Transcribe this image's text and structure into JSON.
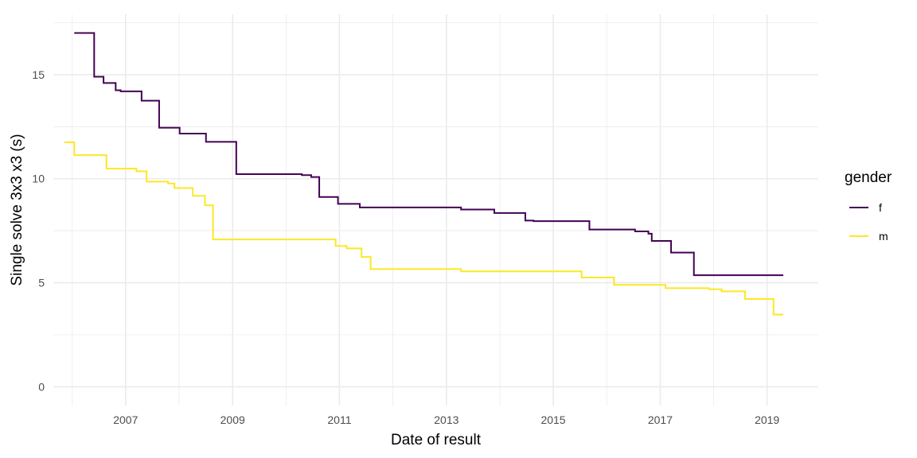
{
  "chart_data": {
    "type": "line",
    "step": true,
    "xlabel": "Date of result",
    "ylabel": "Single solve 3x3 x3 (s)",
    "x_is_date": true,
    "xlim": [
      "2005-08-25",
      "2019-12-17"
    ],
    "ylim": [
      -0.9,
      17.9
    ],
    "x_ticks": [
      "2007",
      "2009",
      "2011",
      "2013",
      "2015",
      "2017",
      "2019"
    ],
    "y_ticks": [
      0,
      5,
      10,
      15
    ],
    "grid": true,
    "legend": {
      "title": "gender",
      "position": "right"
    },
    "series": [
      {
        "name": "f",
        "color": "#440154",
        "points": [
          [
            "2006-01-15",
            17.0
          ],
          [
            "2006-05-31",
            14.9
          ],
          [
            "2006-08-03",
            14.6
          ],
          [
            "2006-10-25",
            14.25
          ],
          [
            "2006-11-28",
            14.2
          ],
          [
            "2007-04-20",
            13.75
          ],
          [
            "2007-08-18",
            12.45
          ],
          [
            "2008-01-05",
            12.17
          ],
          [
            "2008-07-03",
            11.77
          ],
          [
            "2009-01-26",
            10.22
          ],
          [
            "2010-04-19",
            10.17
          ],
          [
            "2010-06-22",
            10.08
          ],
          [
            "2010-08-16",
            9.12
          ],
          [
            "2010-12-22",
            8.79
          ],
          [
            "2011-05-20",
            8.62
          ],
          [
            "2013-04-11",
            8.52
          ],
          [
            "2013-11-24",
            8.35
          ],
          [
            "2014-06-24",
            7.99
          ],
          [
            "2014-08-19",
            7.96
          ],
          [
            "2015-09-05",
            7.56
          ],
          [
            "2016-07-13",
            7.47
          ],
          [
            "2016-10-12",
            7.36
          ],
          [
            "2016-11-04",
            7.01
          ],
          [
            "2017-03-16",
            6.45
          ],
          [
            "2017-08-19",
            5.36
          ],
          [
            "2019-04-22",
            5.36
          ]
        ]
      },
      {
        "name": "m",
        "color": "#fde725",
        "points": [
          [
            "2005-11-09",
            11.75
          ],
          [
            "2006-01-15",
            11.13
          ],
          [
            "2006-08-23",
            10.48
          ],
          [
            "2007-03-16",
            10.36
          ],
          [
            "2007-05-24",
            9.86
          ],
          [
            "2007-10-18",
            9.77
          ],
          [
            "2007-12-01",
            9.55
          ],
          [
            "2008-04-04",
            9.18
          ],
          [
            "2008-06-26",
            8.72
          ],
          [
            "2008-08-20",
            7.08
          ],
          [
            "2010-12-06",
            6.77
          ],
          [
            "2011-02-20",
            6.65
          ],
          [
            "2011-06-01",
            6.24
          ],
          [
            "2011-08-02",
            5.66
          ],
          [
            "2013-04-11",
            5.55
          ],
          [
            "2015-07-14",
            5.25
          ],
          [
            "2016-02-20",
            4.9
          ],
          [
            "2017-02-06",
            4.74
          ],
          [
            "2017-12-01",
            4.69
          ],
          [
            "2018-02-24",
            4.59
          ],
          [
            "2018-08-04",
            4.22
          ],
          [
            "2019-02-14",
            3.47
          ],
          [
            "2019-04-22",
            3.47
          ]
        ]
      }
    ]
  }
}
